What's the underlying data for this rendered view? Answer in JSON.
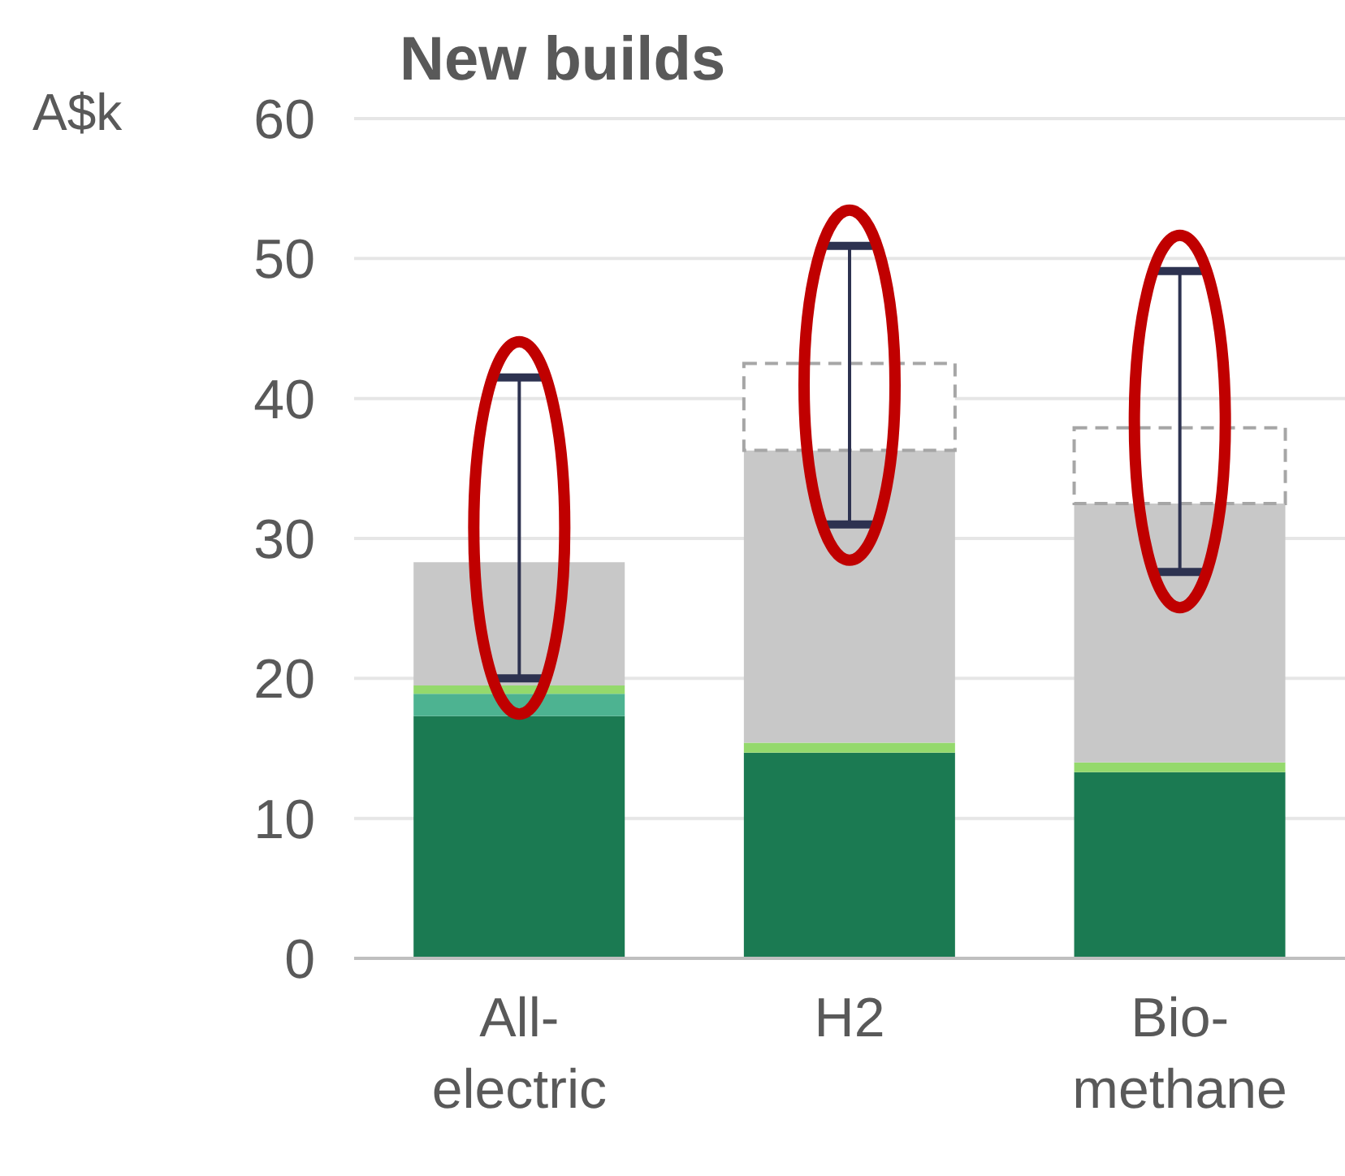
{
  "chart_data": {
    "type": "bar",
    "title": "New builds",
    "ylabel": "A$k",
    "categories": [
      "All-electric",
      "H2",
      "Bio-methane"
    ],
    "stacked": true,
    "series": [
      {
        "color": "#1b7a52",
        "values": [
          17.3,
          14.7,
          13.3
        ]
      },
      {
        "color": "#4db391",
        "values": [
          1.6,
          0,
          0
        ]
      },
      {
        "color": "#94d96c",
        "values": [
          0.6,
          0.7,
          0.7
        ]
      },
      {
        "color": "#c8c8c8",
        "values": [
          8.8,
          20.9,
          18.5
        ]
      },
      {
        "color": "#a6a6a6",
        "line_style": "dashed",
        "values": [
          0,
          6.2,
          5.4
        ],
        "errors": [
          [
            20,
            41.5
          ],
          [
            31,
            50.9
          ],
          [
            27.6,
            49.1
          ]
        ]
      }
    ],
    "ylim": [
      0,
      60
    ],
    "yticks": [
      0,
      10,
      20,
      30,
      40,
      50,
      60
    ],
    "grid": "y"
  }
}
